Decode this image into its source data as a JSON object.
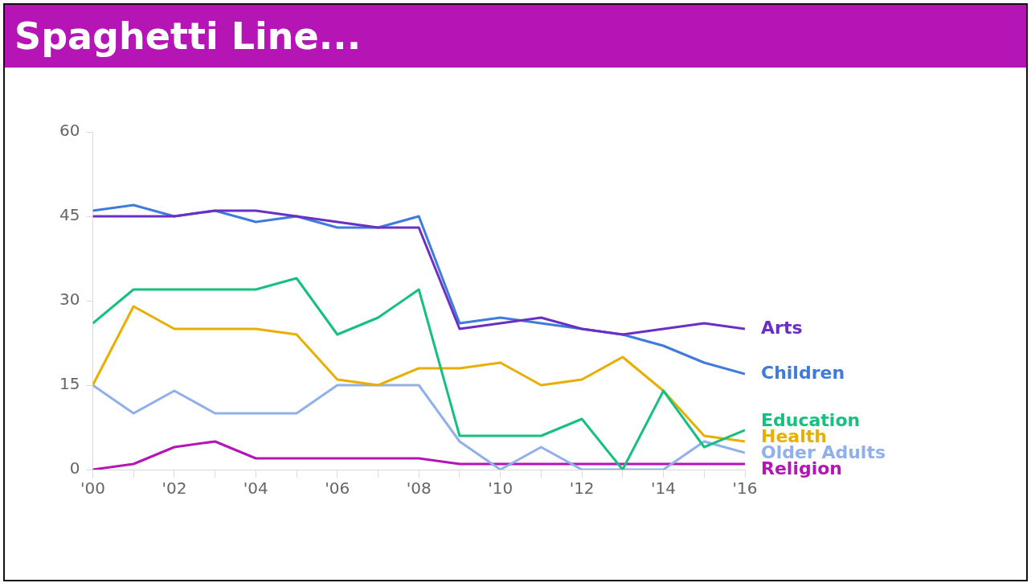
{
  "chart_data": {
    "type": "line",
    "title": "Spaghetti Line...",
    "x": [
      2000,
      2001,
      2002,
      2003,
      2004,
      2005,
      2006,
      2007,
      2008,
      2009,
      2010,
      2011,
      2012,
      2013,
      2014,
      2015,
      2016
    ],
    "xlim": [
      2000,
      2016
    ],
    "xticks": [
      {
        "value": 2000,
        "label": "'00"
      },
      {
        "value": 2001,
        "label": null
      },
      {
        "value": 2002,
        "label": "'02"
      },
      {
        "value": 2003,
        "label": null
      },
      {
        "value": 2004,
        "label": "'04"
      },
      {
        "value": 2005,
        "label": null
      },
      {
        "value": 2006,
        "label": "'06"
      },
      {
        "value": 2007,
        "label": null
      },
      {
        "value": 2008,
        "label": "'08"
      },
      {
        "value": 2009,
        "label": null
      },
      {
        "value": 2010,
        "label": "'10"
      },
      {
        "value": 2011,
        "label": null
      },
      {
        "value": 2012,
        "label": "'12"
      },
      {
        "value": 2013,
        "label": null
      },
      {
        "value": 2014,
        "label": "'14"
      },
      {
        "value": 2015,
        "label": null
      },
      {
        "value": 2016,
        "label": "'16"
      }
    ],
    "ylim": [
      0,
      60
    ],
    "yticks": [
      0,
      15,
      30,
      45,
      60
    ],
    "grid": false,
    "legend": false,
    "marker": "none",
    "line_style": "solid",
    "series": [
      {
        "name": "Arts",
        "color": "#6a2fc4",
        "values": [
          45,
          45,
          45,
          46,
          46,
          45,
          44,
          43,
          43,
          25,
          26,
          27,
          25,
          24,
          25,
          26,
          25
        ]
      },
      {
        "name": "Children",
        "color": "#3f7bdc",
        "values": [
          46,
          47,
          45,
          46,
          44,
          45,
          43,
          43,
          45,
          26,
          27,
          26,
          25,
          24,
          22,
          19,
          17
        ]
      },
      {
        "name": "Education",
        "color": "#16c080",
        "values": [
          26,
          32,
          32,
          32,
          32,
          34,
          24,
          27,
          32,
          6,
          6,
          6,
          9,
          0,
          14,
          4,
          7
        ]
      },
      {
        "name": "Health",
        "color": "#e8ae00",
        "values": [
          15,
          29,
          25,
          25,
          25,
          24,
          16,
          15,
          18,
          18,
          19,
          15,
          16,
          20,
          14,
          6,
          5
        ]
      },
      {
        "name": "Older Adults",
        "color": "#8fb0ea",
        "values": [
          15,
          10,
          14,
          10,
          10,
          10,
          15,
          15,
          15,
          5,
          0,
          4,
          0,
          0,
          0,
          5,
          3
        ]
      },
      {
        "name": "Religion",
        "color": "#b515b5",
        "values": [
          0,
          1,
          4,
          5,
          2,
          2,
          2,
          2,
          2,
          1,
          1,
          1,
          1,
          1,
          1,
          1,
          1
        ]
      }
    ]
  }
}
